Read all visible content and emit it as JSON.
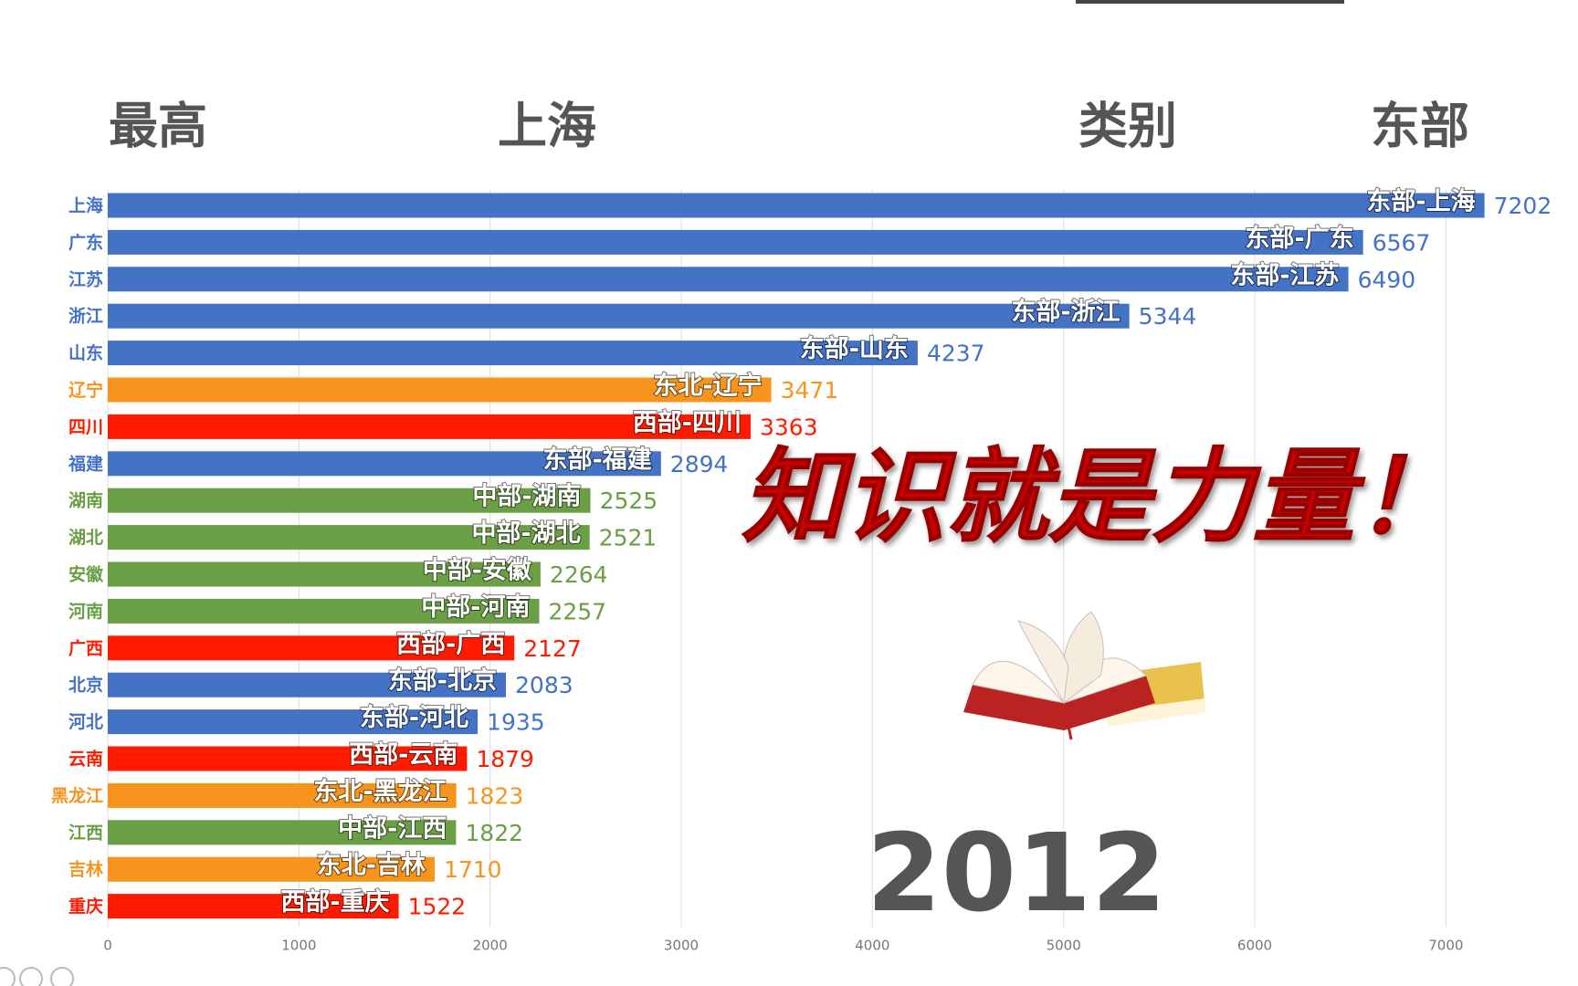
{
  "chart_data": {
    "type": "bar",
    "orientation": "horizontal",
    "header": {
      "left_label": "最高",
      "left_value": "上海",
      "right_label": "类别",
      "right_value": "东部"
    },
    "categories": [
      "上海",
      "广东",
      "江苏",
      "浙江",
      "山东",
      "辽宁",
      "四川",
      "福建",
      "湖南",
      "湖北",
      "安徽",
      "河南",
      "广西",
      "北京",
      "河北",
      "云南",
      "黑龙江",
      "江西",
      "吉林",
      "重庆"
    ],
    "bar_labels": [
      "东部-上海",
      "东部-广东",
      "东部-江苏",
      "东部-浙江",
      "东部-山东",
      "东北-辽宁",
      "西部-四川",
      "东部-福建",
      "中部-湖南",
      "中部-湖北",
      "中部-安徽",
      "中部-河南",
      "西部-广西",
      "东部-北京",
      "东部-河北",
      "西部-云南",
      "东北-黑龙江",
      "中部-江西",
      "东北-吉林",
      "西部-重庆"
    ],
    "values": [
      7202,
      6567,
      6490,
      5344,
      4237,
      3471,
      3363,
      2894,
      2525,
      2521,
      2264,
      2257,
      2127,
      2083,
      1935,
      1879,
      1823,
      1822,
      1710,
      1522
    ],
    "colors": [
      "#4472c4",
      "#4472c4",
      "#4472c4",
      "#4472c4",
      "#4472c4",
      "#f7941d",
      "#ff1a00",
      "#4472c4",
      "#6a9f45",
      "#6a9f45",
      "#6a9f45",
      "#6a9f45",
      "#ff1a00",
      "#4472c4",
      "#4472c4",
      "#ff1a00",
      "#f7941d",
      "#6a9f45",
      "#f7941d",
      "#ff1a00"
    ],
    "xlim": [
      0,
      7500
    ],
    "xticks": [
      0,
      1000,
      2000,
      3000,
      4000,
      5000,
      6000,
      7000
    ],
    "grid": true,
    "annotation": "知识就是力量！",
    "year_label": "2012"
  }
}
